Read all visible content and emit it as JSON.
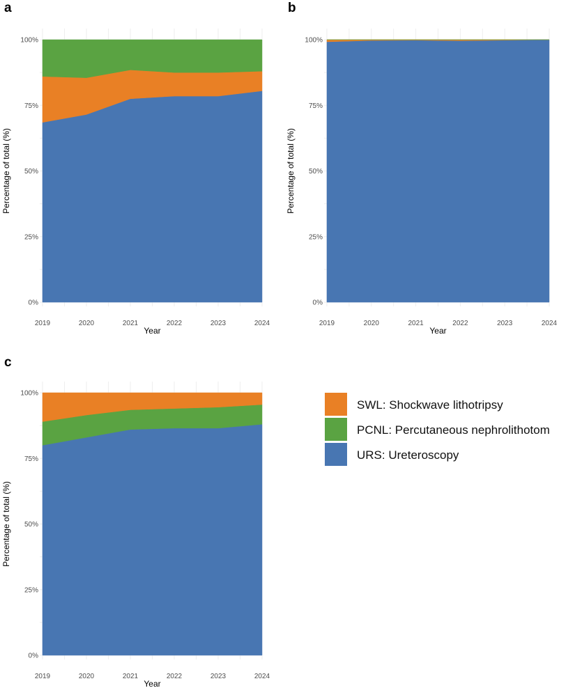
{
  "colors": {
    "URS": "#4876b2",
    "PCNL": "#5aa342",
    "SWL": "#e98025",
    "grid": "#eeeeee"
  },
  "legend": [
    {
      "key": "SWL",
      "label": "SWL: Shockwave lithotripsy"
    },
    {
      "key": "PCNL",
      "label": "PCNL: Percutaneous nephrolithotom"
    },
    {
      "key": "URS",
      "label": "URS: Ureteroscopy"
    }
  ],
  "chart_data": [
    {
      "panel": "a",
      "type": "area",
      "stacked": true,
      "x": [
        2019,
        2020,
        2021,
        2022,
        2023,
        2024
      ],
      "ytick_labels": [
        "0%",
        "25%",
        "50%",
        "75%",
        "100%"
      ],
      "ylim": [
        0,
        100
      ],
      "xlabel": "Year",
      "ylabel": "Percentage of total (%)",
      "series": [
        {
          "key": "URS",
          "values": [
            68.5,
            71.5,
            77.5,
            78.5,
            78.5,
            80.5
          ]
        },
        {
          "key": "SWL",
          "values": [
            17.5,
            14,
            11,
            9,
            9,
            7.5
          ]
        },
        {
          "key": "PCNL",
          "values": [
            14,
            14.5,
            11.5,
            12.5,
            12.5,
            12
          ]
        }
      ]
    },
    {
      "panel": "b",
      "type": "area",
      "stacked": true,
      "x": [
        2019,
        2020,
        2021,
        2022,
        2023,
        2024
      ],
      "ytick_labels": [
        "0%",
        "25%",
        "50%",
        "75%",
        "100%"
      ],
      "ylim": [
        0,
        100
      ],
      "xlabel": "Year",
      "ylabel": "Percentage of total (%)",
      "series": [
        {
          "key": "URS",
          "values": [
            99.2,
            99.7,
            99.8,
            99.6,
            99.8,
            100
          ]
        },
        {
          "key": "SWL",
          "values": [
            0.8,
            0.3,
            0.2,
            0.4,
            0.2,
            0
          ]
        },
        {
          "key": "PCNL",
          "values": [
            0,
            0,
            0,
            0,
            0,
            0
          ]
        }
      ]
    },
    {
      "panel": "c",
      "type": "area",
      "stacked": true,
      "x": [
        2019,
        2020,
        2021,
        2022,
        2023,
        2024
      ],
      "ytick_labels": [
        "0%",
        "25%",
        "50%",
        "75%",
        "100%"
      ],
      "ylim": [
        0,
        100
      ],
      "xlabel": "Year",
      "ylabel": "Percentage of total (%)",
      "series": [
        {
          "key": "URS",
          "values": [
            80,
            83,
            86,
            86.5,
            86.5,
            88
          ]
        },
        {
          "key": "PCNL",
          "values": [
            9,
            8.5,
            7.5,
            7.5,
            8,
            7.5
          ]
        },
        {
          "key": "SWL",
          "values": [
            11,
            8.5,
            6.5,
            6,
            5.5,
            4.5
          ]
        }
      ]
    }
  ]
}
